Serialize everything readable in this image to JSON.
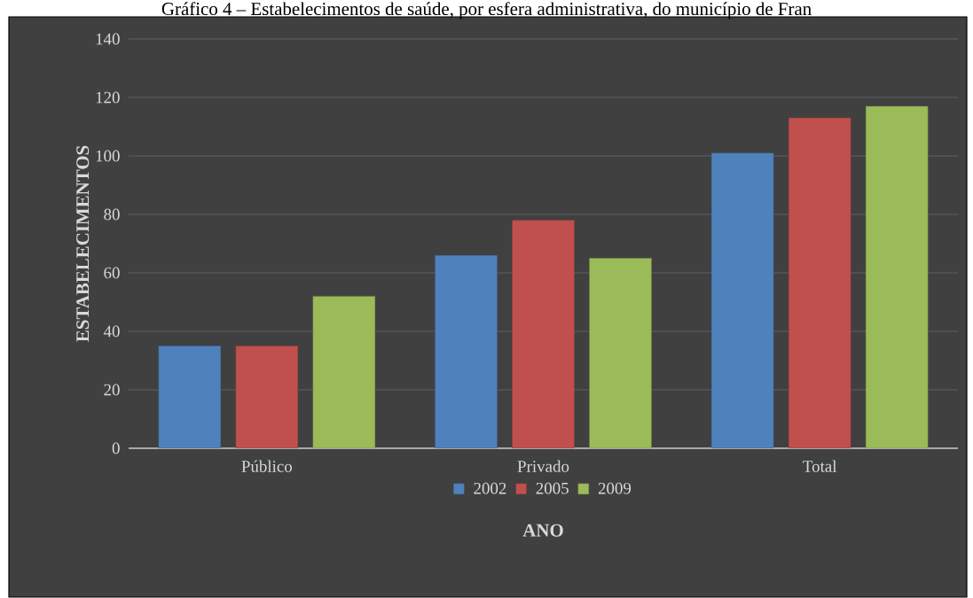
{
  "chart_data": {
    "type": "bar",
    "title": "Gráfico 4 – Estabelecimentos de saúde, por esfera administrativa, do município de Fran",
    "xlabel": "ANO",
    "ylabel": "ESTABELECIMENTOS",
    "categories": [
      "Público",
      "Privado",
      "Total"
    ],
    "series": [
      {
        "name": "2002",
        "color": "#4f81bd",
        "values": [
          35,
          66,
          101
        ]
      },
      {
        "name": "2005",
        "color": "#c0504d",
        "values": [
          35,
          78,
          113
        ]
      },
      {
        "name": "2009",
        "color": "#9bbb59",
        "values": [
          52,
          65,
          117
        ]
      }
    ],
    "ylim": [
      0,
      140
    ],
    "yticks": [
      0,
      20,
      40,
      60,
      80,
      100,
      120,
      140
    ],
    "grid": "y",
    "legend": "bottom"
  }
}
